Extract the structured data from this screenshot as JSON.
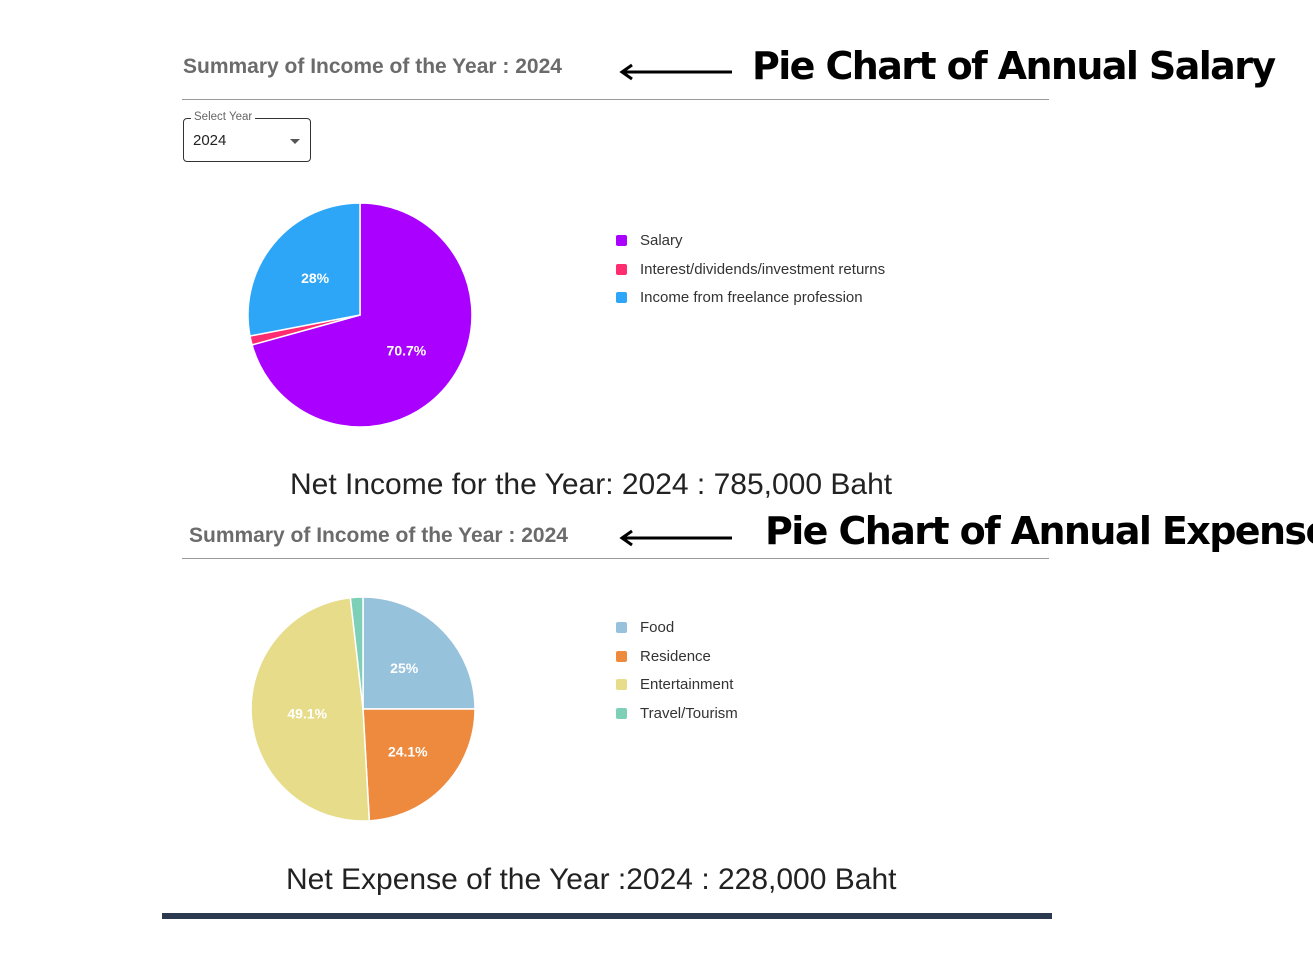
{
  "income_section": {
    "title": "Summary of Income of the Year : 2024",
    "annotation": "Pie Chart of Annual Salary",
    "select": {
      "label": "Select Year",
      "value": "2024"
    },
    "net_text": "Net Income for the Year: 2024 : 785,000 Baht"
  },
  "expense_section": {
    "title": "Summary of Income of the Year : 2024",
    "annotation": "Pie Chart of Annual Expense",
    "net_text": "Net Expense of the Year :2024 : 228,000 Baht"
  },
  "chart_data": [
    {
      "type": "pie",
      "categories": [
        "Salary",
        "Interest/dividends/investment returns",
        "Income from freelance profession"
      ],
      "values": [
        70.7,
        1.3,
        28.0
      ],
      "data_labels": [
        "70.7%",
        "",
        "28%"
      ],
      "colors": [
        "#aa00ff",
        "#ff2d6f",
        "#2ea6f7"
      ],
      "legend": "right"
    },
    {
      "type": "pie",
      "categories": [
        "Food",
        "Residence",
        "Entertainment",
        "Travel/Tourism"
      ],
      "values": [
        25.0,
        24.1,
        49.1,
        1.8
      ],
      "data_labels": [
        "25%",
        "24.1%",
        "49.1%",
        ""
      ],
      "colors": [
        "#97c2dc",
        "#ee8a3e",
        "#e6dc8a",
        "#7ecfb7"
      ],
      "legend": "right"
    }
  ]
}
